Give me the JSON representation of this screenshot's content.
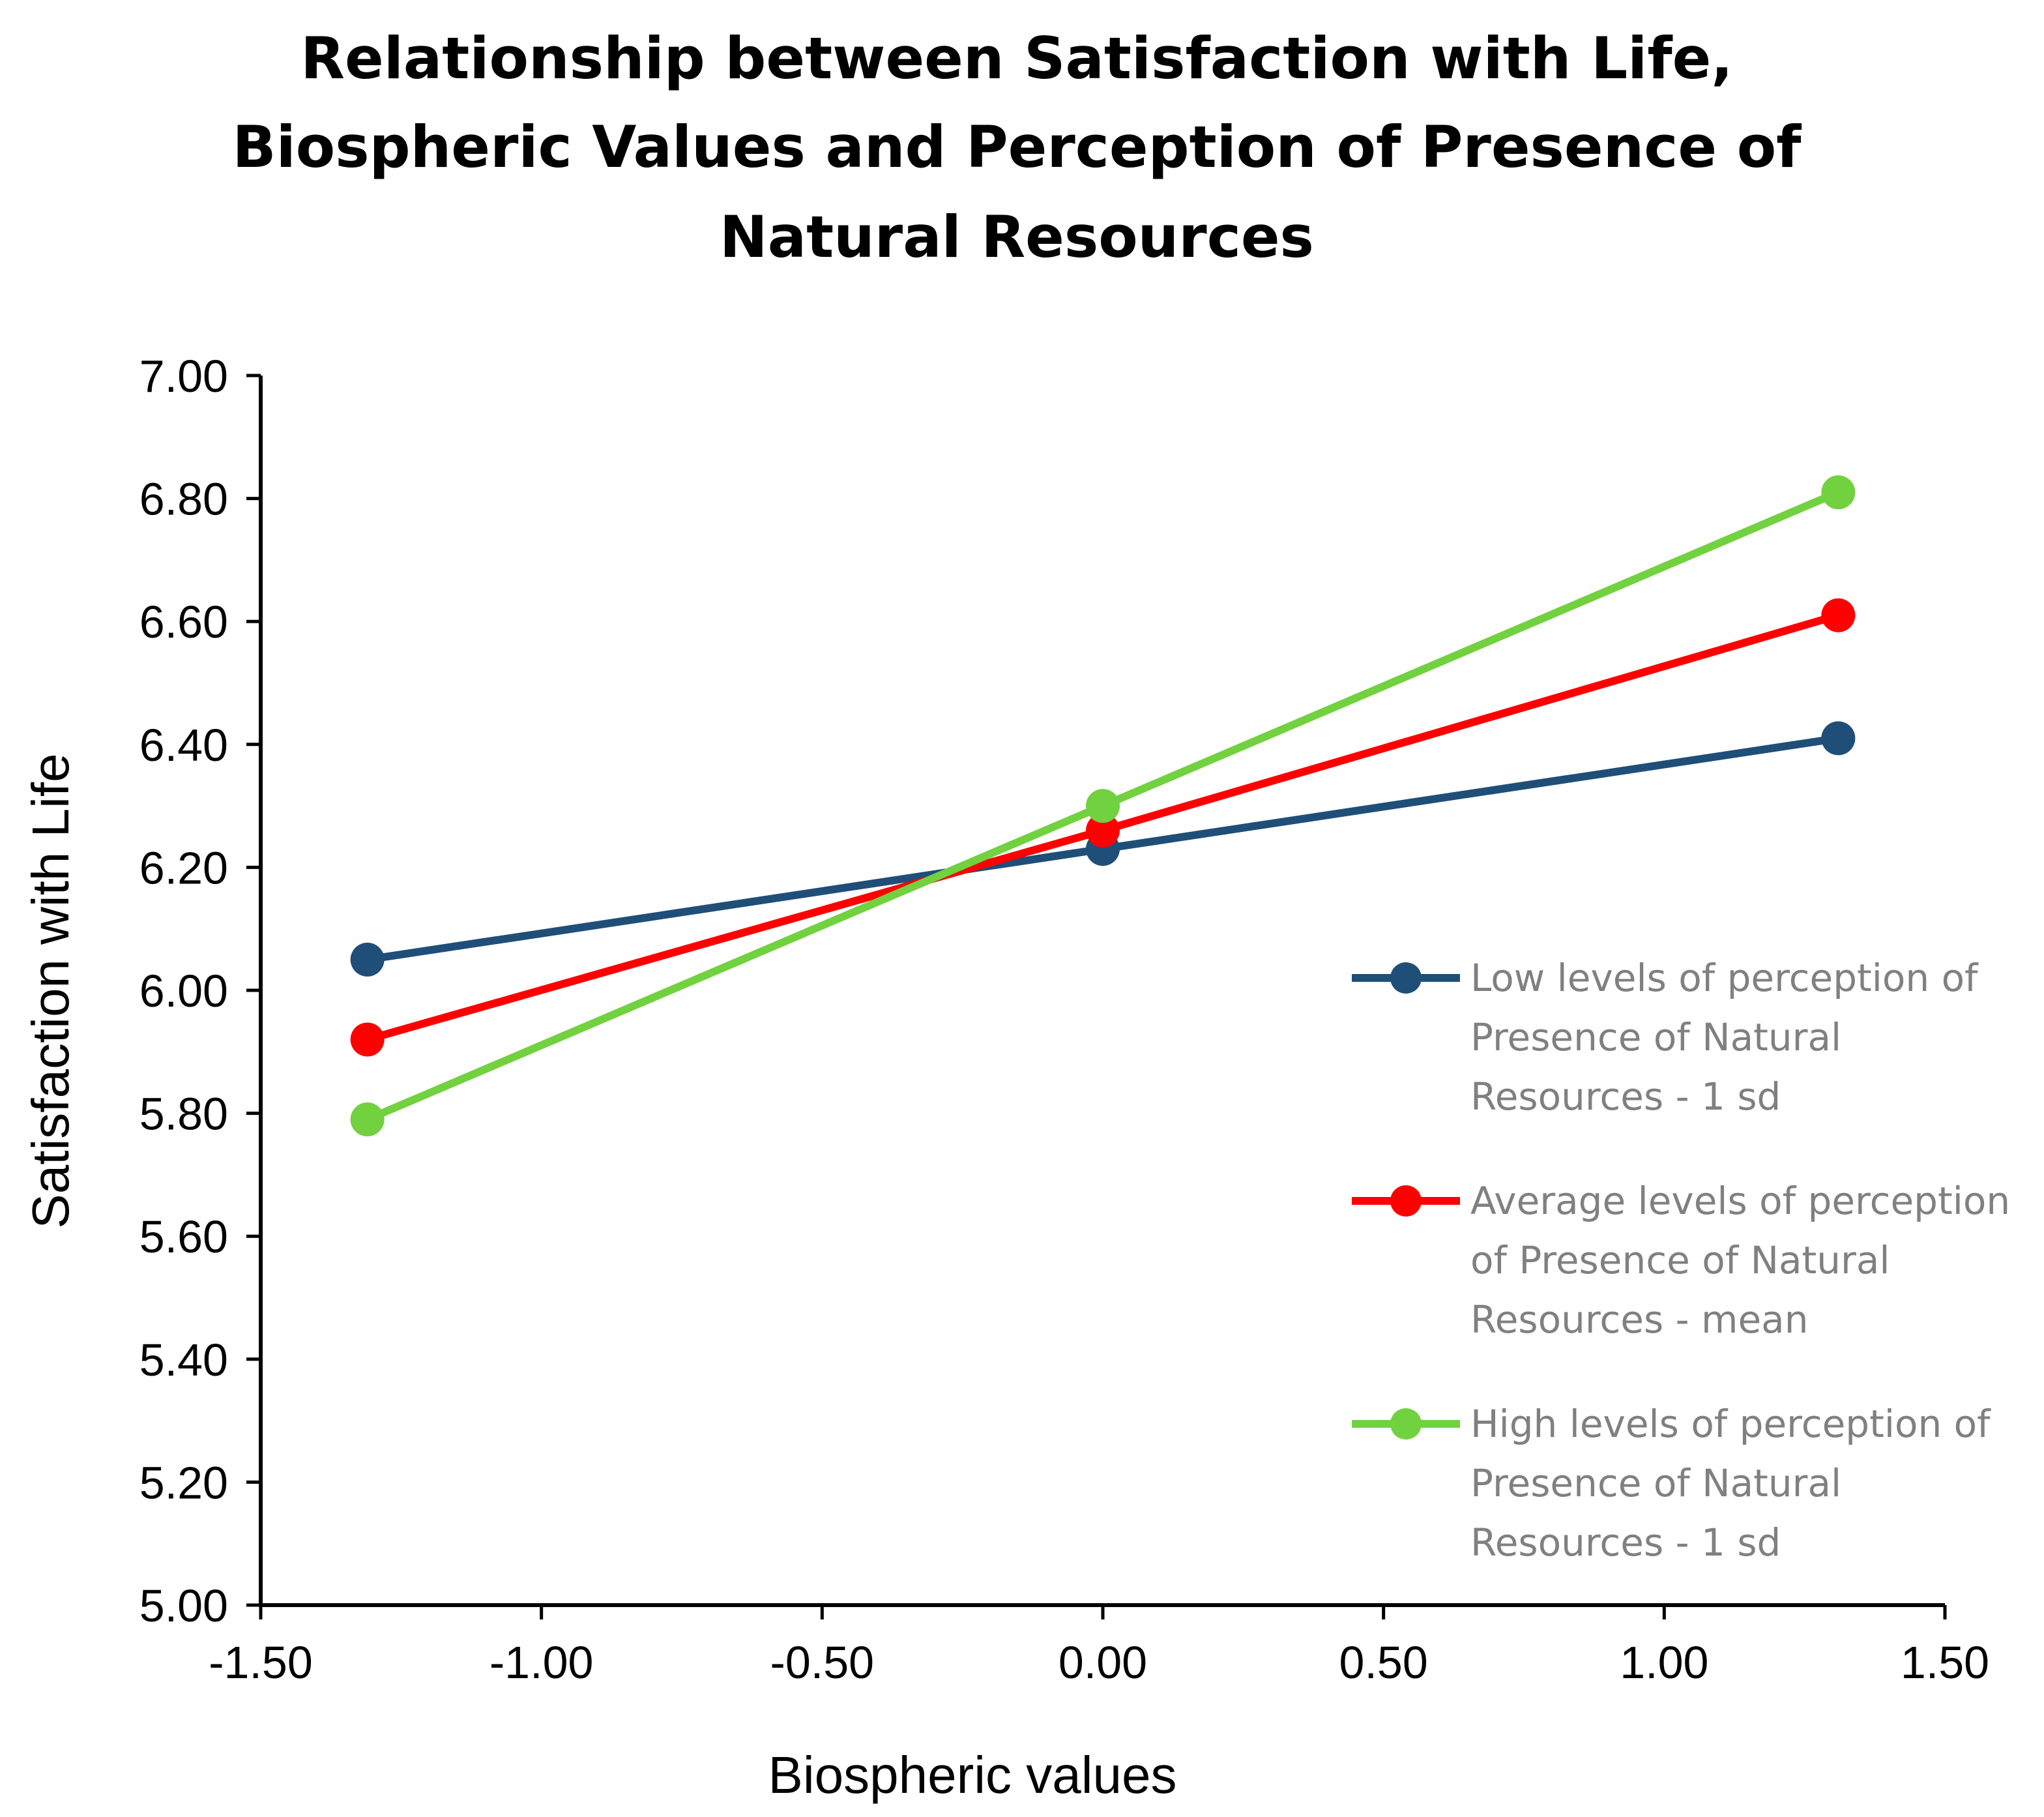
{
  "chart_data": {
    "type": "line",
    "title": "Relationship between Satisfaction with Life, Biospheric Values and Perception of Presence of Natural Resources",
    "title_lines": [
      "Relationship between Satisfaction with Life,",
      "Biospheric Values and Perception of Presence of",
      "Natural Resources"
    ],
    "xlabel": "Biospheric values",
    "ylabel": "Satisfaction with Life",
    "xlim": [
      -1.5,
      1.5
    ],
    "ylim": [
      5.0,
      7.0
    ],
    "x_ticks": [
      "-1.50",
      "-1.00",
      "-0.50",
      "0.00",
      "0.50",
      "1.00",
      "1.50"
    ],
    "y_ticks": [
      "7.00",
      "6.80",
      "6.60",
      "6.40",
      "6.20",
      "6.00",
      "5.80",
      "5.60",
      "5.40",
      "5.20",
      "5.00"
    ],
    "grid": false,
    "legend_position": "right",
    "series": [
      {
        "name": "Low levels of perception of Presence of Natural Resources  - 1 sd",
        "legend_lines": [
          "Low levels of perception of",
          "Presence of Natural",
          "Resources  - 1 sd"
        ],
        "color": "#1F4E79",
        "x": [
          -1.31,
          0.0,
          1.31
        ],
        "y": [
          6.05,
          6.23,
          6.41
        ]
      },
      {
        "name": "Average levels of perception of Presence of Natural Resources - mean",
        "legend_lines": [
          "Average levels of perception",
          "of Presence of Natural",
          "Resources - mean"
        ],
        "color": "#FF0000",
        "x": [
          -1.31,
          0.0,
          1.31
        ],
        "y": [
          5.92,
          6.26,
          6.61
        ]
      },
      {
        "name": "High levels of perception of Presence of Natural Resources - 1 sd",
        "legend_lines": [
          "High levels of perception of",
          "Presence of Natural",
          "Resources - 1 sd"
        ],
        "color": "#72D13F",
        "x": [
          -1.31,
          0.0,
          1.31
        ],
        "y": [
          5.79,
          6.3,
          6.81
        ]
      }
    ]
  }
}
